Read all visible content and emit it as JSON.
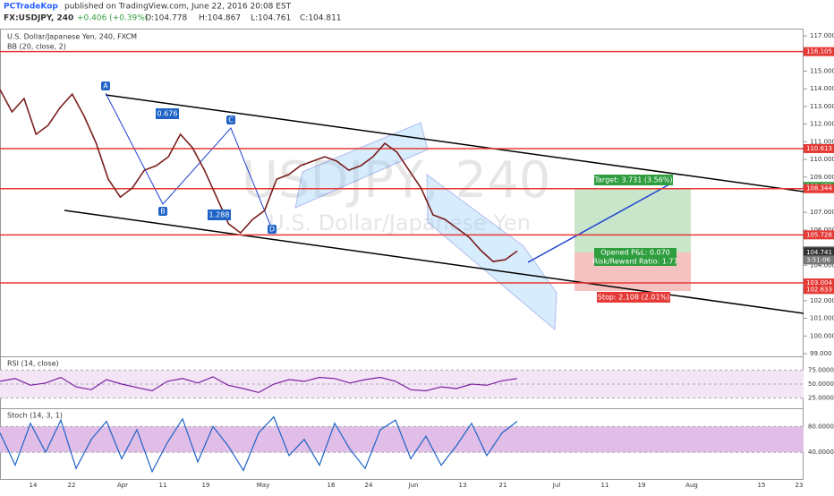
{
  "header": {
    "author": "PCTradeKop",
    "published": "published on TradingView.com, June 22, 2016 20:08 EST",
    "symbol": "FX:USDJPY, 240",
    "change": "+0.406 (+0.39%)",
    "open": "O:104.778",
    "high": "H:104.867",
    "low": "L:104.761",
    "close": "C:104.811"
  },
  "main": {
    "title": "U.S. Dollar/Japanese Yen, 240, FXCM",
    "indicator": "BB (20, close, 2)",
    "watermark_symbol": "USDJPY, 240",
    "watermark_name": "U.S. Dollar/Japanese Yen",
    "ylim": [
      99,
      117
    ],
    "yticks": [
      {
        "value": 117,
        "label": "117.000"
      },
      {
        "value": 116,
        "label": "116.000"
      },
      {
        "value": 115,
        "label": "115.000"
      },
      {
        "value": 114,
        "label": "114.000"
      },
      {
        "value": 113,
        "label": "113.000"
      },
      {
        "value": 112,
        "label": "112.000"
      },
      {
        "value": 111,
        "label": "111.000"
      },
      {
        "value": 110,
        "label": "110.000"
      },
      {
        "value": 109,
        "label": "109.000"
      },
      {
        "value": 107,
        "label": "107.000"
      },
      {
        "value": 106,
        "label": "106.000"
      },
      {
        "value": 104,
        "label": "104.000"
      },
      {
        "value": 103,
        "label": "103.000"
      },
      {
        "value": 102,
        "label": "102.000"
      },
      {
        "value": 101,
        "label": "101.000"
      },
      {
        "value": 100,
        "label": "100.000"
      },
      {
        "value": 99,
        "label": "99.000"
      }
    ],
    "levels": [
      116.105,
      110.613,
      108.344,
      105.726,
      103.004
    ],
    "badges": [
      {
        "value": 116.105,
        "color": "#e53935"
      },
      {
        "value": 110.613,
        "color": "#e53935"
      },
      {
        "value": 108.472,
        "color": "#2e9e3e"
      },
      {
        "value": 108.344,
        "color": "#e53935"
      },
      {
        "value": 105.726,
        "color": "#e53935"
      },
      {
        "value": 104.811,
        "color": "#555555"
      },
      {
        "value": 104.741,
        "color": "#333333"
      },
      {
        "value": 103.004,
        "color": "#e53935"
      },
      {
        "value": 102.633,
        "color": "#e53935"
      }
    ],
    "timer": "3:51:06",
    "close": [
      113.96,
      112.69,
      113.45,
      111.42,
      111.93,
      112.94,
      113.7,
      112.44,
      110.91,
      108.88,
      107.87,
      108.38,
      109.39,
      109.65,
      110.15,
      111.42,
      110.66,
      109.39,
      107.87,
      106.35,
      105.84,
      106.6,
      107.11,
      108.88,
      109.14,
      109.65,
      109.9,
      110.15,
      109.9,
      109.39,
      109.65,
      110.15,
      110.91,
      110.41,
      109.39,
      108.38,
      106.86,
      106.6,
      106.1,
      105.59,
      104.83,
      104.22,
      104.32,
      104.81
    ],
    "points": [
      "A",
      "B",
      "C",
      "D"
    ],
    "ratios": [
      "0.676",
      "1.288"
    ],
    "target": "Target: 3.731 (3.56%)",
    "pnl": "Opened P&L: 0.070",
    "rr": "Risk/Reward Ratio: 1.77",
    "stop": "Stop: 2.108 (2.01%)"
  },
  "rsi": {
    "title": "RSI (14, close)",
    "ylim": [
      10,
      90
    ],
    "yticks": [
      {
        "value": 75,
        "label": "75.0000"
      },
      {
        "value": 50,
        "label": "50.0000"
      },
      {
        "value": 25,
        "label": "25.0000"
      }
    ],
    "values": [
      55,
      60,
      48,
      52,
      62,
      45,
      40,
      58,
      50,
      44,
      38,
      55,
      60,
      52,
      63,
      48,
      42,
      35,
      50,
      58,
      55,
      62,
      60,
      52,
      58,
      62,
      55,
      40,
      38,
      45,
      42,
      50,
      48,
      56,
      60
    ]
  },
  "stoch": {
    "title": "Stoch (14, 3, 1)",
    "ylim": [
      0,
      100
    ],
    "yticks": [
      {
        "value": 80,
        "label": "80.0000"
      },
      {
        "value": 40,
        "label": "40.0000"
      }
    ],
    "values": [
      70,
      20,
      85,
      40,
      90,
      15,
      60,
      88,
      30,
      75,
      10,
      55,
      92,
      25,
      80,
      50,
      12,
      70,
      95,
      35,
      60,
      20,
      85,
      45,
      15,
      75,
      90,
      30,
      65,
      20,
      50,
      85,
      35,
      70,
      88
    ]
  },
  "xaxis": [
    "14",
    "22",
    "Apr",
    "11",
    "19",
    "May",
    "16",
    "24",
    "Jun",
    "13",
    "21",
    "Jul",
    "11",
    "19",
    "Aug",
    "15",
    "23"
  ]
}
